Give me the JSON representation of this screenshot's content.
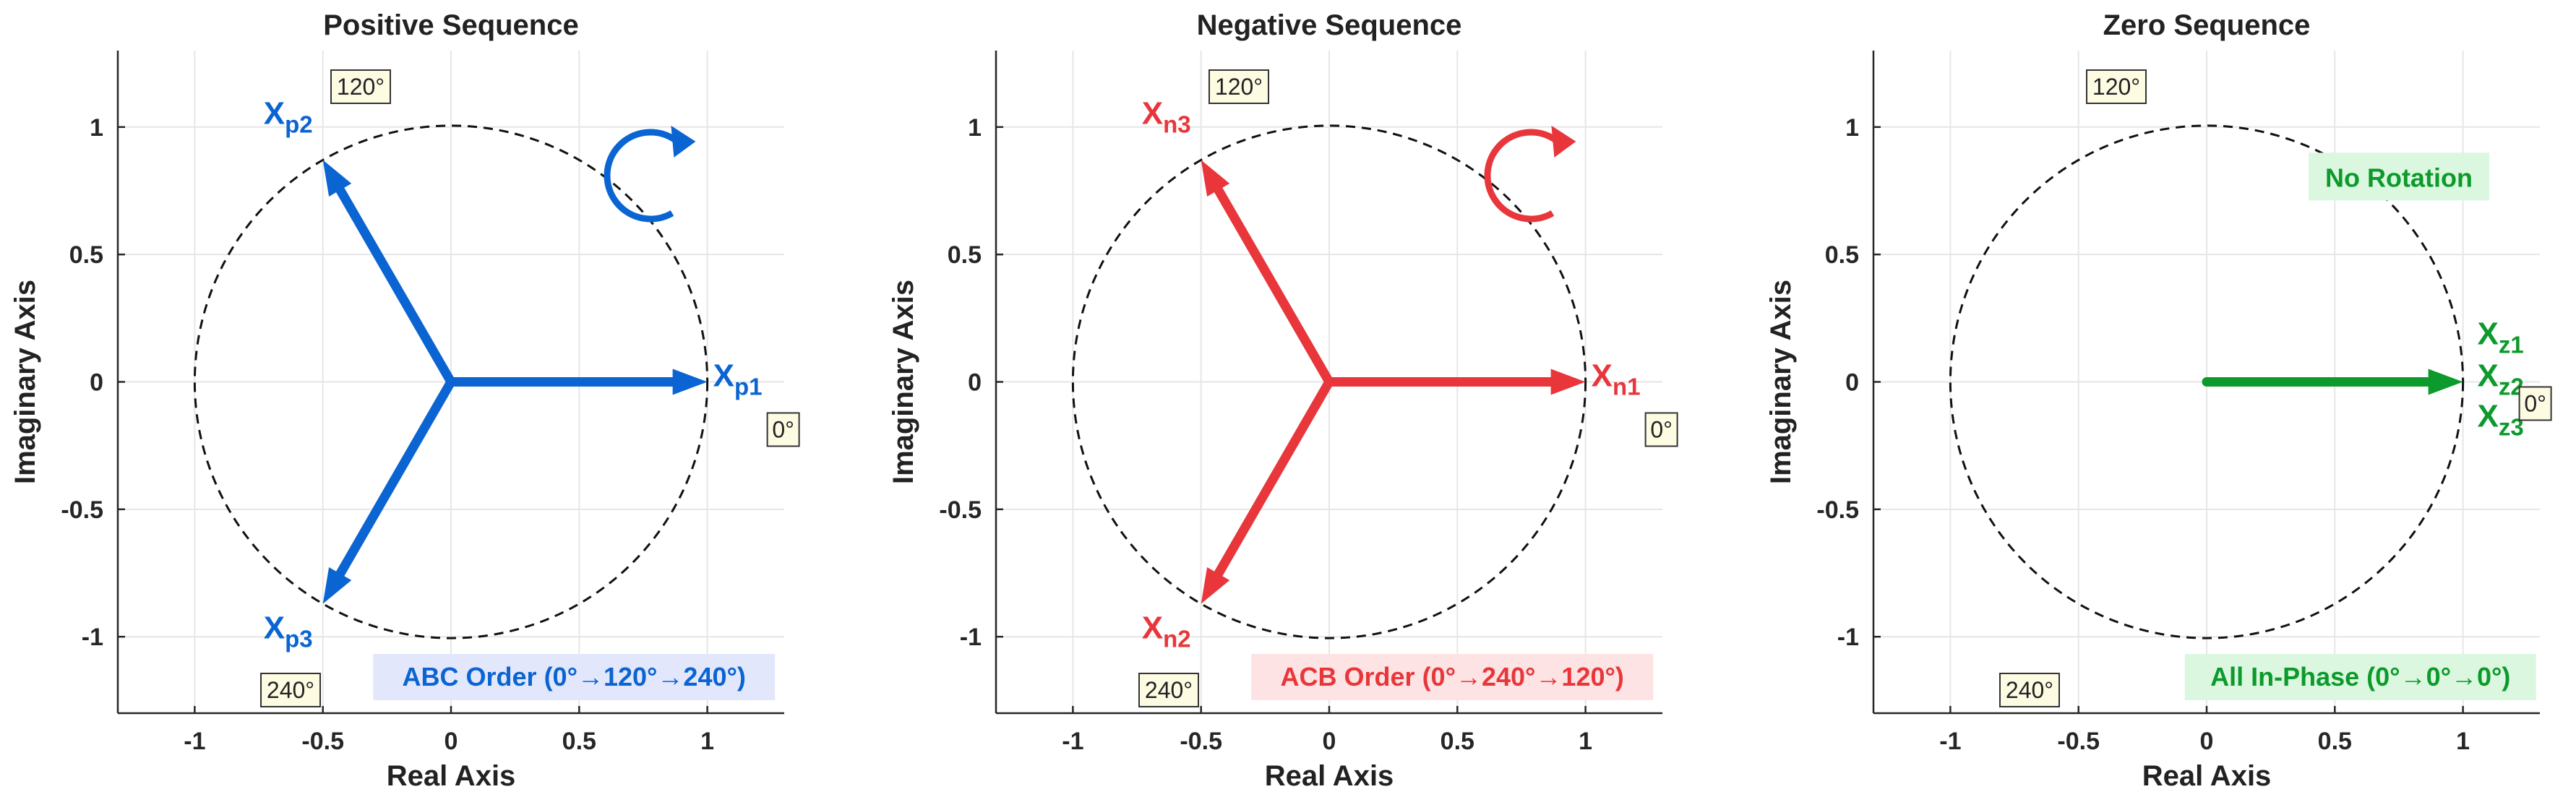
{
  "colors": {
    "positive": "#0a64d2",
    "negative": "#e8363b",
    "zero": "#0c9a2c",
    "positive_box": "#e3e7fb",
    "negative_box": "#fde3e3",
    "zero_box": "#dcf7df"
  },
  "chart_data": [
    {
      "type": "phasor",
      "title": "Positive Sequence",
      "xlabel": "Real Axis",
      "ylabel": "Imaginary Axis",
      "xlim": [
        -1.3,
        1.3
      ],
      "ylim": [
        -1.3,
        1.3
      ],
      "xticks": [
        "-1",
        "-0.5",
        "0",
        "0.5",
        "1"
      ],
      "yticks": [
        "1",
        "0.5",
        "0",
        "-0.5",
        "-1"
      ],
      "grid": true,
      "color_key": "positive",
      "box_key": "positive_box",
      "phasors": [
        {
          "label": "X",
          "sub": "p1",
          "magnitude": 1,
          "angle_deg": 0
        },
        {
          "label": "X",
          "sub": "p2",
          "magnitude": 1,
          "angle_deg": 120
        },
        {
          "label": "X",
          "sub": "p3",
          "magnitude": 1,
          "angle_deg": 240
        }
      ],
      "angle_labels": [
        "120°",
        "0°",
        "240°"
      ],
      "rotation": "counterclockwise",
      "order_label": "ABC Order (0°→120°→240°)",
      "note": ""
    },
    {
      "type": "phasor",
      "title": "Negative Sequence",
      "xlabel": "Real Axis",
      "ylabel": "Imaginary Axis",
      "xlim": [
        -1.3,
        1.3
      ],
      "ylim": [
        -1.3,
        1.3
      ],
      "xticks": [
        "-1",
        "-0.5",
        "0",
        "0.5",
        "1"
      ],
      "yticks": [
        "1",
        "0.5",
        "0",
        "-0.5",
        "-1"
      ],
      "grid": true,
      "color_key": "negative",
      "box_key": "negative_box",
      "phasors": [
        {
          "label": "X",
          "sub": "n1",
          "magnitude": 1,
          "angle_deg": 0
        },
        {
          "label": "X",
          "sub": "n3",
          "magnitude": 1,
          "angle_deg": 120
        },
        {
          "label": "X",
          "sub": "n2",
          "magnitude": 1,
          "angle_deg": 240
        }
      ],
      "angle_labels": [
        "120°",
        "0°",
        "240°"
      ],
      "rotation": "clockwise",
      "order_label": "ACB Order (0°→240°→120°)",
      "note": ""
    },
    {
      "type": "phasor",
      "title": "Zero Sequence",
      "xlabel": "Real Axis",
      "ylabel": "Imaginary Axis",
      "xlim": [
        -1.3,
        1.3
      ],
      "ylim": [
        -1.3,
        1.3
      ],
      "xticks": [
        "-1",
        "-0.5",
        "0",
        "0.5",
        "1"
      ],
      "yticks": [
        "1",
        "0.5",
        "0",
        "-0.5",
        "-1"
      ],
      "grid": true,
      "color_key": "zero",
      "box_key": "zero_box",
      "phasors": [
        {
          "label": "X",
          "sub": "z1",
          "magnitude": 1,
          "angle_deg": 0
        },
        {
          "label": "X",
          "sub": "z2",
          "magnitude": 1,
          "angle_deg": 0
        },
        {
          "label": "X",
          "sub": "z3",
          "magnitude": 1,
          "angle_deg": 0
        }
      ],
      "angle_labels": [
        "120°",
        "0°",
        "240°"
      ],
      "rotation": "none",
      "order_label": "All In-Phase (0°→0°→0°)",
      "note": "No Rotation"
    }
  ]
}
